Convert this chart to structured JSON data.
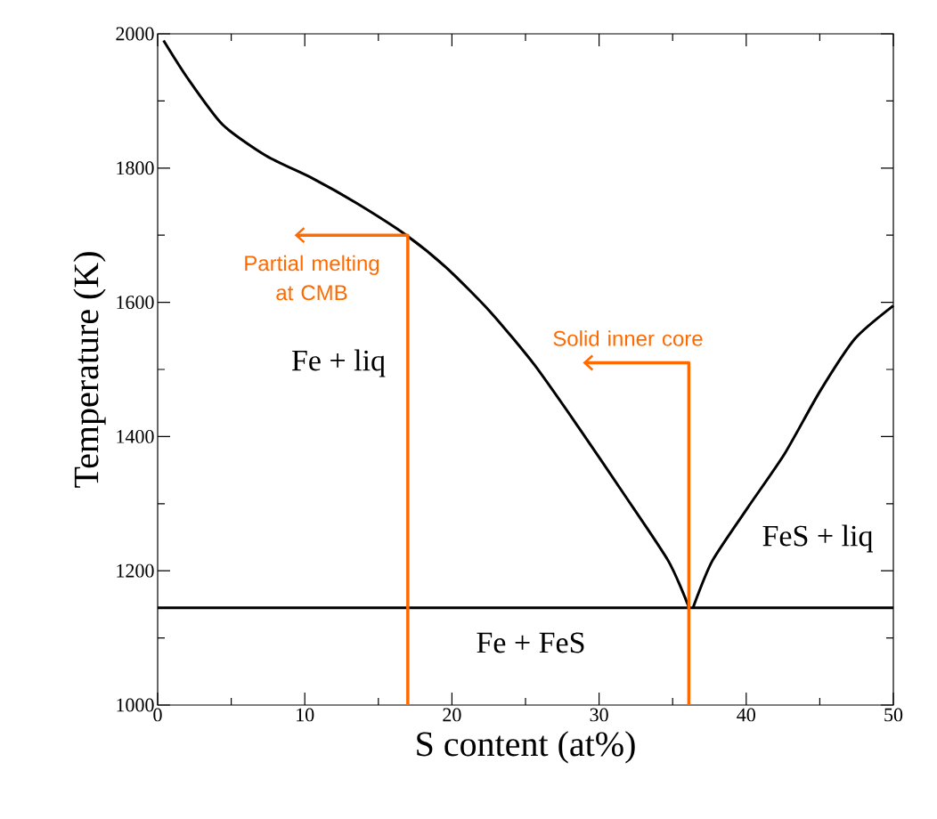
{
  "chart_data": {
    "type": "line",
    "xlabel": "S content (at%)",
    "ylabel": "Temperature (K)",
    "xlim": [
      0,
      50
    ],
    "ylim": [
      1000,
      2000
    ],
    "xticks": [
      0,
      10,
      20,
      30,
      40,
      50
    ],
    "yticks": [
      1000,
      1200,
      1400,
      1600,
      1800,
      2000
    ],
    "grid": false,
    "marker": "none",
    "series": [
      {
        "color": "#000000",
        "x": [
          0.4,
          2,
          4.4,
          7.4,
          10.5,
          13.5,
          16.9,
          19.6,
          22.6,
          25.6,
          28.6,
          31.7,
          34.7,
          36.1
        ],
        "values": [
          1990,
          1935,
          1865,
          1818,
          1785,
          1748,
          1700,
          1652,
          1586,
          1507,
          1414,
          1314,
          1215,
          1146
        ]
      },
      {
        "color": "#000000",
        "x": [
          36.4,
          37.7,
          40.1,
          42.6,
          45,
          47.4,
          50
        ],
        "values": [
          1146,
          1215,
          1294,
          1374,
          1467,
          1546,
          1595
        ]
      },
      {
        "color": "#000000",
        "x": [
          0,
          50
        ],
        "values": [
          1145,
          1145
        ]
      },
      {
        "color": "#ff6a00",
        "x": [
          17,
          17,
          9.3
        ],
        "values": [
          1000,
          1700,
          1700
        ]
      },
      {
        "color": "#ff6a00",
        "x": [
          36.1,
          36.1,
          28.9
        ],
        "values": [
          1000,
          1510,
          1510
        ]
      }
    ],
    "annotations": [
      "Partial melting at CMB",
      "Solid inner core",
      "Fe + liq",
      "FeS + liq",
      "Fe + FeS"
    ]
  }
}
